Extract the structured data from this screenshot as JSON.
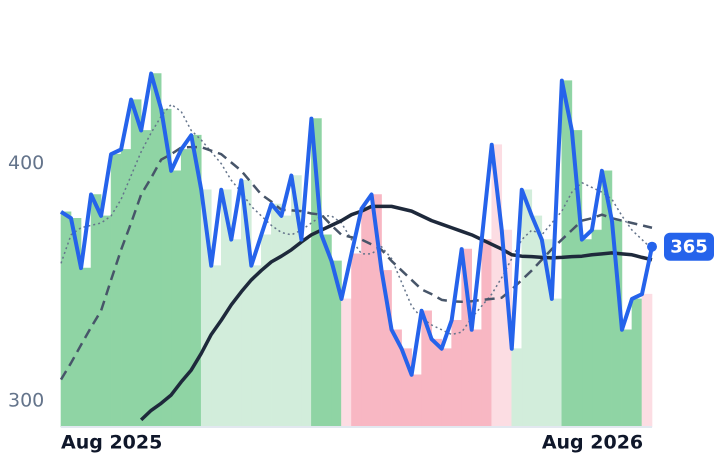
{
  "chart_data": {
    "type": "line",
    "x": [
      0,
      0.25,
      0.5,
      0.75,
      1,
      1.25,
      1.5,
      1.75,
      2,
      2.25,
      2.5,
      2.75,
      3,
      3.25,
      3.5,
      3.75,
      4,
      4.25,
      4.5,
      4.75,
      5,
      5.25,
      5.5,
      5.75,
      6,
      6.25,
      6.5,
      6.75,
      7,
      7.25,
      7.5,
      7.75,
      8,
      8.25,
      8.5,
      8.75,
      9,
      9.25,
      9.5,
      9.75,
      10,
      10.25,
      10.5,
      10.75,
      11,
      11.25,
      11.5,
      11.75,
      12,
      12.25,
      12.5,
      12.75,
      13,
      13.25,
      13.5,
      13.75,
      14,
      14.25,
      14.5,
      14.75
    ],
    "xlim": [
      0,
      14.75
    ],
    "xticks": [
      {
        "value": 0,
        "label": "Aug 2025"
      },
      {
        "value": 12,
        "label": "Aug 2026"
      }
    ],
    "ylim": [
      289,
      469
    ],
    "yticks": [
      300,
      400
    ],
    "series": [
      {
        "color": "#64748b",
        "line_style": "dotted",
        "values": [
          358,
          370,
          373,
          374,
          375,
          378,
          385,
          395,
          405,
          413,
          420,
          425,
          422,
          414,
          410,
          405,
          400,
          393,
          388,
          382,
          378,
          374,
          371,
          370,
          372,
          375,
          378,
          378,
          375,
          368,
          362,
          362,
          365,
          360,
          350,
          340,
          335,
          332,
          330,
          328,
          329,
          335,
          340,
          345,
          352,
          360,
          368,
          372,
          370,
          375,
          380,
          388,
          392,
          390,
          388,
          385,
          378,
          372,
          368,
          364
        ]
      },
      {
        "color": "#475569",
        "line_style": "dashed",
        "values": [
          309,
          316,
          323.6,
          331,
          338,
          351,
          363.7,
          375,
          387,
          394,
          401.7,
          404,
          406.8,
          407,
          407,
          405.5,
          404,
          400.5,
          397,
          392,
          387,
          384,
          380.6,
          380.3,
          380,
          379,
          378.5,
          374,
          370,
          369,
          368,
          366,
          363.7,
          359,
          355,
          351,
          347,
          345,
          342.6,
          342,
          341.8,
          342,
          342.6,
          343,
          343.5,
          347,
          351,
          355,
          359.5,
          364,
          368,
          372,
          376,
          377,
          378.5,
          377,
          376,
          375,
          374,
          373
        ]
      },
      {
        "color": "#1e293b",
        "line_style": "solid",
        "values": [
          null,
          null,
          null,
          null,
          null,
          null,
          null,
          null,
          292,
          296,
          299,
          302.5,
          308,
          313,
          320,
          328,
          334,
          340.5,
          346,
          351,
          355,
          358.6,
          361,
          363.7,
          367,
          370,
          372,
          374,
          376,
          378.5,
          380,
          382,
          382,
          382,
          381,
          380,
          378,
          376,
          374.5,
          373,
          371.5,
          370,
          368,
          366,
          364,
          361.6,
          361,
          360.8,
          360.5,
          360.3,
          360.5,
          360.8,
          361,
          361.6,
          362,
          362.4,
          362,
          361.6,
          360.5,
          359.5
        ]
      },
      {
        "color": "#2563eb",
        "line_style": "solid",
        "values": [
          379.7,
          377,
          356,
          387,
          378,
          404,
          406,
          427,
          414,
          438,
          423,
          397,
          406,
          412,
          389,
          357,
          389,
          368,
          393,
          357,
          370,
          383,
          378,
          395,
          368,
          419,
          370,
          359,
          343,
          362,
          381,
          387,
          355,
          330,
          322,
          311,
          338,
          326,
          322,
          334,
          364,
          330,
          368,
          408,
          372,
          322,
          389,
          378,
          368,
          343,
          435,
          414,
          368,
          372,
          397,
          376,
          330,
          343,
          345,
          365
        ],
        "fill_colors": [
          "#8fd4a4",
          "#8fd4a4",
          "#8fd4a4",
          "#8fd4a4",
          "#8fd4a4",
          "#8fd4a4",
          "#8fd4a4",
          "#8fd4a4",
          "#8fd4a4",
          "#8fd4a4",
          "#8fd4a4",
          "#8fd4a4",
          "#8fd4a4",
          "#8fd4a4",
          "#d2eddb",
          "#d2eddb",
          "#d2eddb",
          "#d2eddb",
          "#d2eddb",
          "#d2eddb",
          "#d2eddb",
          "#d2eddb",
          "#d2eddb",
          "#d2eddb",
          "#d2eddb",
          "#8fd4a4",
          "#8fd4a4",
          "#8fd4a4",
          "#fcdde3",
          "#f8b7c3",
          "#f8b7c3",
          "#f8b7c3",
          "#f8b7c3",
          "#f8b7c3",
          "#f8b7c3",
          "#f8b7c3",
          "#f8b7c3",
          "#f8b7c3",
          "#f8b7c3",
          "#f8b7c3",
          "#f8b7c3",
          "#f8b7c3",
          "#f8b7c3",
          "#fcdde3",
          "#fcdde3",
          "#d2eddb",
          "#d2eddb",
          "#d2eddb",
          "#d2eddb",
          "#d2eddb",
          "#8fd4a4",
          "#8fd4a4",
          "#8fd4a4",
          "#8fd4a4",
          "#8fd4a4",
          "#8fd4a4",
          "#8fd4a4",
          "#8fd4a4",
          "#fcdde3",
          "#fcdde3"
        ]
      }
    ],
    "annotation": {
      "value": 365,
      "color": "#2563eb"
    }
  }
}
